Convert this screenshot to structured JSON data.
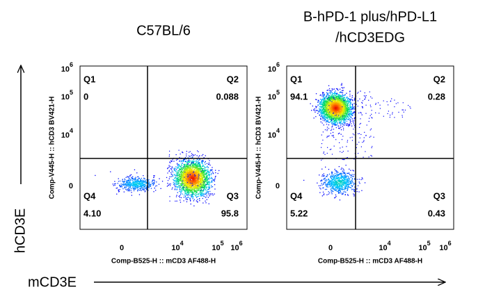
{
  "figure": {
    "y_axis_title": "hCD3E",
    "x_axis_title": "mCD3E",
    "panels": [
      {
        "title": [
          "C57BL/6"
        ],
        "y_axis_label": "Comp-V445-H :: hCD3 BV421-H",
        "x_axis_label": "Comp-B525-H :: mCD3 AF488-H",
        "y_ticks": [
          {
            "base": "10",
            "exponent": "6"
          },
          {
            "base": "10",
            "exponent": "5"
          },
          {
            "base": "10",
            "exponent": "4"
          },
          {
            "base": "0"
          }
        ],
        "x_ticks": [
          {
            "base": "0"
          },
          {
            "base": "10",
            "exponent": "4"
          },
          {
            "base": "10",
            "exponent": "5"
          },
          {
            "base": "10",
            "exponent": "6"
          }
        ],
        "quadrants": [
          {
            "name": "Q1",
            "value": "0"
          },
          {
            "name": "Q2",
            "value": "0.088"
          },
          {
            "name": "Q3",
            "value": "95.8"
          },
          {
            "name": "Q4",
            "value": "4.10"
          }
        ]
      },
      {
        "title": [
          "B-hPD-1 plus/hPD-L1",
          "/hCD3EDG"
        ],
        "y_axis_label": "Comp-V445-H :: hCD3 BV421-H",
        "x_axis_label": "Comp-B525-H :: mCD3 AF488-H",
        "y_ticks": [
          {
            "base": "10",
            "exponent": "6"
          },
          {
            "base": "10",
            "exponent": "5"
          },
          {
            "base": "10",
            "exponent": "4"
          },
          {
            "base": "0"
          }
        ],
        "x_ticks": [
          {
            "base": "0"
          },
          {
            "base": "10",
            "exponent": "4"
          },
          {
            "base": "10",
            "exponent": "5"
          },
          {
            "base": "10",
            "exponent": "6"
          }
        ],
        "quadrants": [
          {
            "name": "Q1",
            "value": "94.1"
          },
          {
            "name": "Q2",
            "value": "0.28"
          },
          {
            "name": "Q3",
            "value": "0.43"
          },
          {
            "name": "Q4",
            "value": "5.22"
          }
        ]
      }
    ]
  }
}
